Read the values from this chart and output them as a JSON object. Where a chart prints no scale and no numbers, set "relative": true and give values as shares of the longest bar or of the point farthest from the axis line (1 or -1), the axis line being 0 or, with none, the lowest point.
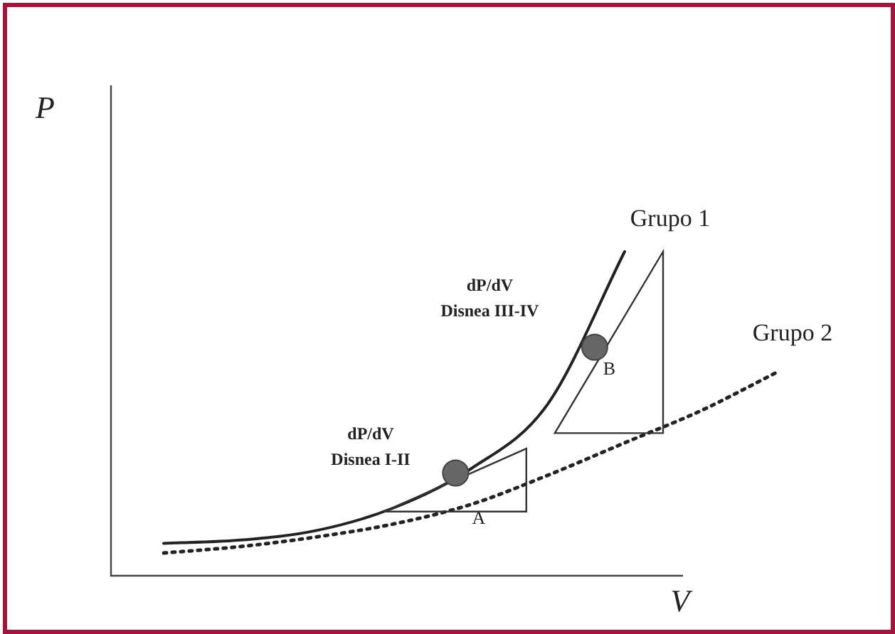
{
  "chart_data": {
    "type": "line",
    "relative": true,
    "xlabel": "V",
    "ylabel": "P",
    "categories": [
      null,
      null,
      null,
      null,
      null,
      null,
      null,
      null,
      null
    ],
    "series": [
      {
        "name": "Grupo 1",
        "color": "#222222",
        "line_style": "solid",
        "values": [
          0.1,
          0.11,
          0.14,
          0.21,
          0.33,
          0.53,
          1.0,
          null,
          null
        ]
      },
      {
        "name": "Grupo 2",
        "color": "#222222",
        "line_style": "dotted",
        "values": [
          0.07,
          0.09,
          0.12,
          0.16,
          0.22,
          0.31,
          0.41,
          0.51,
          0.63
        ]
      }
    ],
    "annotations": [
      "dP/dV\nDisnea I-II",
      "A",
      "dP/dV\nDisnea III-IV",
      "B"
    ],
    "marker": "none",
    "legend": false
  }
}
